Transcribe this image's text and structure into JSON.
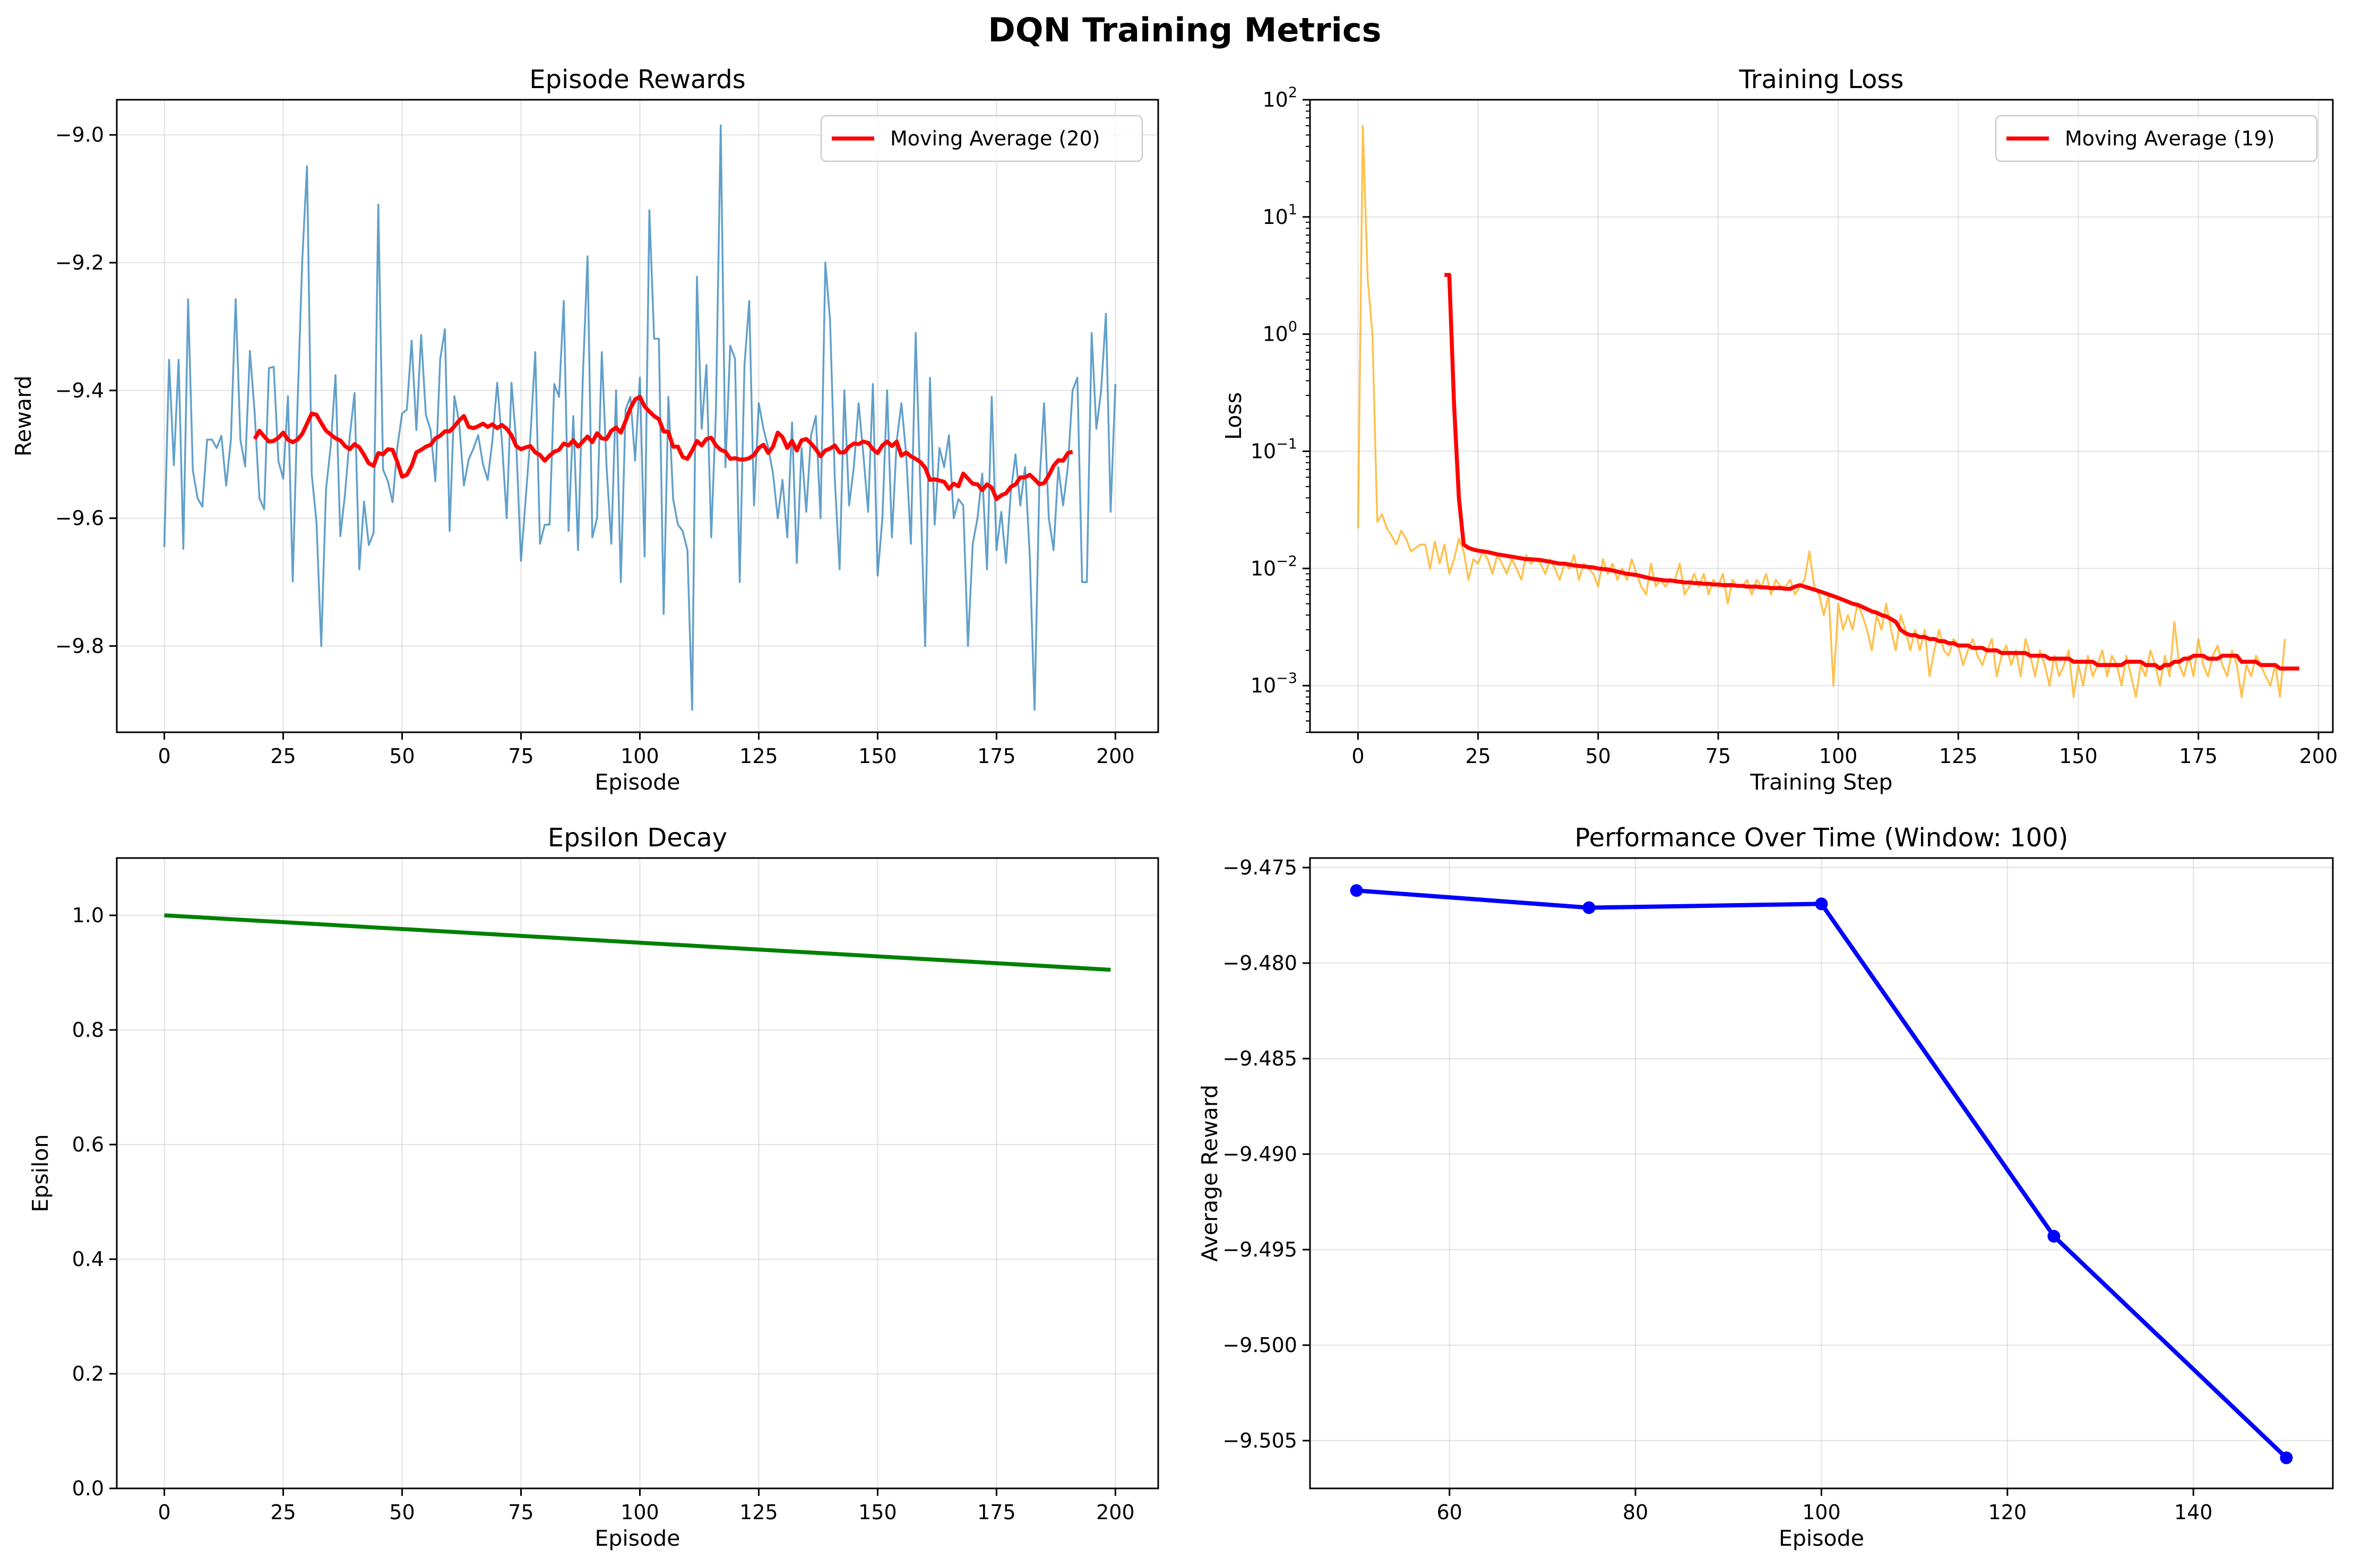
{
  "figure": {
    "title": "DQN Training Metrics"
  },
  "chart_data": [
    {
      "id": "rewards",
      "type": "line",
      "title": "Episode Rewards",
      "xlabel": "Episode",
      "ylabel": "Reward",
      "xlim": [
        -10,
        209
      ],
      "ylim": [
        -9.935,
        -8.945
      ],
      "xticks": [
        0,
        25,
        50,
        75,
        100,
        125,
        150,
        175,
        200
      ],
      "yticks": [
        -9.0,
        -9.2,
        -9.4,
        -9.6,
        -9.8
      ],
      "ytick_labels": [
        "−9.0",
        "−9.2",
        "−9.4",
        "−9.6",
        "−9.8"
      ],
      "grid": true,
      "legend": {
        "position": "top-right",
        "entries": [
          "Moving Average (20)"
        ]
      },
      "series": [
        {
          "name": "",
          "color": "#1f77b4",
          "x_start": 0,
          "y": [
            -9.645,
            -9.352,
            -9.517,
            -9.352,
            -9.648,
            -9.257,
            -9.525,
            -9.569,
            -9.582,
            -9.477,
            -9.477,
            -9.49,
            -9.471,
            -9.549,
            -9.477,
            -9.257,
            -9.477,
            -9.519,
            -9.338,
            -9.435,
            -9.569,
            -9.586,
            -9.365,
            -9.363,
            -9.511,
            -9.538,
            -9.409,
            -9.699,
            -9.427,
            -9.197,
            -9.049,
            -9.531,
            -9.607,
            -9.8,
            -9.555,
            -9.486,
            -9.376,
            -9.628,
            -9.562,
            -9.472,
            -9.404,
            -9.68,
            -9.574,
            -9.642,
            -9.623,
            -9.109,
            -9.524,
            -9.542,
            -9.575,
            -9.489,
            -9.436,
            -9.43,
            -9.322,
            -9.462,
            -9.313,
            -9.438,
            -9.462,
            -9.542,
            -9.352,
            -9.304,
            -9.62,
            -9.409,
            -9.45,
            -9.549,
            -9.508,
            -9.491,
            -9.47,
            -9.515,
            -9.54,
            -9.477,
            -9.388,
            -9.481,
            -9.6,
            -9.388,
            -9.48,
            -9.667,
            -9.568,
            -9.47,
            -9.34,
            -9.64,
            -9.61,
            -9.61,
            -9.39,
            -9.41,
            -9.26,
            -9.62,
            -9.44,
            -9.65,
            -9.38,
            -9.19,
            -9.63,
            -9.6,
            -9.34,
            -9.52,
            -9.64,
            -9.4,
            -9.7,
            -9.43,
            -9.41,
            -9.51,
            -9.38,
            -9.66,
            -9.118,
            -9.319,
            -9.319,
            -9.75,
            -9.41,
            -9.57,
            -9.61,
            -9.62,
            -9.65,
            -9.9,
            -9.222,
            -9.46,
            -9.36,
            -9.63,
            -9.43,
            -8.985,
            -9.52,
            -9.33,
            -9.35,
            -9.7,
            -9.36,
            -9.26,
            -9.58,
            -9.42,
            -9.46,
            -9.49,
            -9.53,
            -9.6,
            -9.54,
            -9.63,
            -9.45,
            -9.67,
            -9.49,
            -9.59,
            -9.47,
            -9.44,
            -9.6,
            -9.2,
            -9.29,
            -9.54,
            -9.68,
            -9.4,
            -9.58,
            -9.52,
            -9.42,
            -9.5,
            -9.59,
            -9.39,
            -9.69,
            -9.6,
            -9.4,
            -9.63,
            -9.48,
            -9.42,
            -9.5,
            -9.64,
            -9.31,
            -9.56,
            -9.8,
            -9.38,
            -9.61,
            -9.49,
            -9.52,
            -9.47,
            -9.6,
            -9.57,
            -9.58,
            -9.8,
            -9.64,
            -9.6,
            -9.53,
            -9.68,
            -9.41,
            -9.65,
            -9.59,
            -9.67,
            -9.56,
            -9.5,
            -9.58,
            -9.52,
            -9.66,
            -9.9,
            -9.55,
            -9.42,
            -9.6,
            -9.65,
            -9.52,
            -9.58,
            -9.52,
            -9.4,
            -9.38,
            -9.7,
            -9.7,
            -9.31,
            -9.46,
            -9.4,
            -9.28,
            -9.59,
            -9.39
          ]
        },
        {
          "name": "Moving Average (20)",
          "color": "#ff0000",
          "x_start": 19,
          "y": [
            -9.476,
            -9.463,
            -9.472,
            -9.48,
            -9.479,
            -9.474,
            -9.466,
            -9.477,
            -9.481,
            -9.477,
            -9.468,
            -9.452,
            -9.436,
            -9.438,
            -9.451,
            -9.463,
            -9.469,
            -9.475,
            -9.478,
            -9.487,
            -9.492,
            -9.484,
            -9.489,
            -9.501,
            -9.514,
            -9.518,
            -9.498,
            -9.5,
            -9.492,
            -9.493,
            -9.512,
            -9.535,
            -9.532,
            -9.518,
            -9.497,
            -9.493,
            -9.488,
            -9.485,
            -9.475,
            -9.471,
            -9.464,
            -9.464,
            -9.456,
            -9.447,
            -9.44,
            -9.457,
            -9.459,
            -9.456,
            -9.452,
            -9.457,
            -9.453,
            -9.459,
            -9.454,
            -9.46,
            -9.47,
            -9.487,
            -9.492,
            -9.489,
            -9.487,
            -9.497,
            -9.501,
            -9.51,
            -9.502,
            -9.496,
            -9.493,
            -9.483,
            -9.486,
            -9.478,
            -9.488,
            -9.48,
            -9.472,
            -9.481,
            -9.467,
            -9.475,
            -9.476,
            -9.463,
            -9.458,
            -9.466,
            -9.448,
            -9.428,
            -9.414,
            -9.41,
            -9.425,
            -9.433,
            -9.44,
            -9.445,
            -9.464,
            -9.465,
            -9.488,
            -9.488,
            -9.504,
            -9.507,
            -9.494,
            -9.479,
            -9.486,
            -9.476,
            -9.474,
            -9.486,
            -9.493,
            -9.496,
            -9.507,
            -9.506,
            -9.508,
            -9.508,
            -9.506,
            -9.501,
            -9.49,
            -9.485,
            -9.498,
            -9.488,
            -9.466,
            -9.473,
            -9.49,
            -9.479,
            -9.494,
            -9.478,
            -9.476,
            -9.483,
            -9.492,
            -9.503,
            -9.494,
            -9.491,
            -9.486,
            -9.497,
            -9.497,
            -9.488,
            -9.483,
            -9.484,
            -9.48,
            -9.482,
            -9.492,
            -9.498,
            -9.486,
            -9.48,
            -9.487,
            -9.48,
            -9.502,
            -9.497,
            -9.503,
            -9.507,
            -9.512,
            -9.521,
            -9.54,
            -9.539,
            -9.541,
            -9.543,
            -9.554,
            -9.546,
            -9.55,
            -9.53,
            -9.538,
            -9.546,
            -9.547,
            -9.556,
            -9.547,
            -9.552,
            -9.57,
            -9.564,
            -9.561,
            -9.551,
            -9.547,
            -9.536,
            -9.536,
            -9.532,
            -9.539,
            -9.547,
            -9.545,
            -9.533,
            -9.518,
            -9.509,
            -9.51,
            -9.498,
            -9.496
          ]
        }
      ]
    },
    {
      "id": "loss",
      "type": "line",
      "title": "Training Loss",
      "xlabel": "Training Step",
      "ylabel": "Loss",
      "yscale": "log",
      "xlim": [
        -10,
        203
      ],
      "ylim": [
        0.0004,
        100
      ],
      "xticks": [
        0,
        25,
        50,
        75,
        100,
        125,
        150,
        175,
        200
      ],
      "ytick_exponents": [
        2,
        1,
        0,
        -1,
        -2,
        -3
      ],
      "ytick_base": "10",
      "grid": true,
      "legend": {
        "position": "top-right",
        "entries": [
          "Moving Average (19)"
        ]
      },
      "series": [
        {
          "name": "",
          "color": "#ffa500",
          "x_start": 0,
          "y": [
            0.022,
            60,
            3.0,
            1.0,
            0.025,
            0.029,
            0.022,
            0.019,
            0.016,
            0.021,
            0.018,
            0.014,
            0.015,
            0.016,
            0.016,
            0.01,
            0.017,
            0.011,
            0.016,
            0.009,
            0.012,
            0.018,
            0.014,
            0.008,
            0.012,
            0.011,
            0.014,
            0.012,
            0.009,
            0.013,
            0.011,
            0.009,
            0.012,
            0.01,
            0.008,
            0.013,
            0.011,
            0.012,
            0.011,
            0.009,
            0.012,
            0.01,
            0.008,
            0.011,
            0.01,
            0.013,
            0.008,
            0.011,
            0.01,
            0.009,
            0.007,
            0.012,
            0.009,
            0.011,
            0.008,
            0.01,
            0.008,
            0.012,
            0.009,
            0.007,
            0.006,
            0.011,
            0.007,
            0.008,
            0.007,
            0.008,
            0.008,
            0.011,
            0.006,
            0.007,
            0.009,
            0.007,
            0.009,
            0.006,
            0.008,
            0.007,
            0.009,
            0.005,
            0.008,
            0.007,
            0.007,
            0.008,
            0.006,
            0.008,
            0.007,
            0.009,
            0.006,
            0.008,
            0.007,
            0.007,
            0.008,
            0.006,
            0.007,
            0.008,
            0.014,
            0.007,
            0.006,
            0.004,
            0.006,
            0.001,
            0.005,
            0.003,
            0.004,
            0.003,
            0.005,
            0.004,
            0.003,
            0.002,
            0.004,
            0.003,
            0.005,
            0.003,
            0.002,
            0.004,
            0.003,
            0.002,
            0.003,
            0.002,
            0.003,
            0.0012,
            0.002,
            0.003,
            0.002,
            0.0018,
            0.0025,
            0.0022,
            0.0015,
            0.002,
            0.0025,
            0.0018,
            0.0015,
            0.002,
            0.0025,
            0.0012,
            0.0018,
            0.0022,
            0.0015,
            0.002,
            0.0012,
            0.0025,
            0.0018,
            0.0012,
            0.002,
            0.0015,
            0.001,
            0.0018,
            0.0012,
            0.0015,
            0.002,
            0.0008,
            0.0015,
            0.001,
            0.0018,
            0.0012,
            0.0015,
            0.002,
            0.0012,
            0.0018,
            0.0015,
            0.001,
            0.0018,
            0.0012,
            0.0008,
            0.0015,
            0.0012,
            0.002,
            0.0015,
            0.001,
            0.0018,
            0.0012,
            0.0035,
            0.0015,
            0.0012,
            0.0018,
            0.0012,
            0.0025,
            0.0015,
            0.0012,
            0.0018,
            0.0022,
            0.0015,
            0.0012,
            0.002,
            0.0015,
            0.0008,
            0.0015,
            0.0012,
            0.0018,
            0.0015,
            0.0012,
            0.001,
            0.0015,
            0.0008,
            0.0025
          ]
        },
        {
          "name": "Moving Average (19)",
          "color": "#ff0000",
          "x_start": 18,
          "y": [
            3.2,
            3.2,
            0.25,
            0.04,
            0.016,
            0.015,
            0.0145,
            0.0142,
            0.014,
            0.0138,
            0.0135,
            0.0132,
            0.013,
            0.0128,
            0.0126,
            0.0124,
            0.0122,
            0.012,
            0.012,
            0.0119,
            0.0118,
            0.0116,
            0.0114,
            0.0112,
            0.011,
            0.011,
            0.0108,
            0.0106,
            0.0105,
            0.0104,
            0.0103,
            0.0102,
            0.01,
            0.0099,
            0.0098,
            0.0096,
            0.0094,
            0.0092,
            0.009,
            0.0089,
            0.0088,
            0.0086,
            0.0084,
            0.0082,
            0.0081,
            0.008,
            0.0079,
            0.0079,
            0.0078,
            0.0077,
            0.0076,
            0.0076,
            0.0075,
            0.0075,
            0.0074,
            0.0074,
            0.0073,
            0.0073,
            0.0072,
            0.0072,
            0.0072,
            0.0071,
            0.0071,
            0.007,
            0.007,
            0.007,
            0.0069,
            0.0069,
            0.0068,
            0.0068,
            0.0068,
            0.0067,
            0.0067,
            0.007,
            0.0072,
            0.007,
            0.0068,
            0.0066,
            0.0064,
            0.0062,
            0.006,
            0.0058,
            0.0056,
            0.0054,
            0.0052,
            0.005,
            0.0049,
            0.0047,
            0.0045,
            0.0043,
            0.0042,
            0.004,
            0.0039,
            0.0037,
            0.0035,
            0.003,
            0.0028,
            0.0027,
            0.0027,
            0.0026,
            0.0026,
            0.0025,
            0.0025,
            0.0024,
            0.0024,
            0.0023,
            0.0023,
            0.0022,
            0.0022,
            0.0022,
            0.0021,
            0.0021,
            0.0021,
            0.002,
            0.002,
            0.002,
            0.0019,
            0.0019,
            0.0019,
            0.0019,
            0.0019,
            0.0019,
            0.0018,
            0.0018,
            0.0018,
            0.0018,
            0.0017,
            0.0017,
            0.0017,
            0.0017,
            0.0017,
            0.0016,
            0.0016,
            0.0016,
            0.0016,
            0.0016,
            0.0015,
            0.0015,
            0.0015,
            0.0015,
            0.0015,
            0.0015,
            0.0016,
            0.0016,
            0.0016,
            0.0016,
            0.0015,
            0.0015,
            0.0015,
            0.0014,
            0.0015,
            0.0015,
            0.0016,
            0.0016,
            0.0017,
            0.0017,
            0.0018,
            0.0018,
            0.0018,
            0.0017,
            0.0017,
            0.0017,
            0.0018,
            0.0018,
            0.0018,
            0.0018,
            0.0016,
            0.0016,
            0.0016,
            0.0016,
            0.0015,
            0.0015,
            0.0015,
            0.0015,
            0.0014,
            0.0014,
            0.0014,
            0.0014,
            0.0014
          ]
        }
      ]
    },
    {
      "id": "epsilon",
      "type": "line",
      "title": "Epsilon Decay",
      "xlabel": "Episode",
      "ylabel": "Epsilon",
      "xlim": [
        -10,
        209
      ],
      "ylim": [
        0,
        1.1
      ],
      "xticks": [
        0,
        25,
        50,
        75,
        100,
        125,
        150,
        175,
        200
      ],
      "yticks": [
        0.0,
        0.2,
        0.4,
        0.6,
        0.8,
        1.0
      ],
      "ytick_labels": [
        "0.0",
        "0.2",
        "0.4",
        "0.6",
        "0.8",
        "1.0"
      ],
      "grid": true,
      "series": [
        {
          "name": "",
          "color": "#008000",
          "x": [
            0,
            199
          ],
          "y": [
            1.0,
            0.905
          ]
        }
      ]
    },
    {
      "id": "performance",
      "type": "line",
      "title": "Performance Over Time (Window: 100)",
      "xlabel": "Episode",
      "ylabel": "Average Reward",
      "xlim": [
        45,
        155
      ],
      "ylim": [
        -9.5075,
        -9.4745
      ],
      "xticks": [
        60,
        80,
        100,
        120,
        140
      ],
      "yticks": [
        -9.475,
        -9.48,
        -9.485,
        -9.49,
        -9.495,
        -9.5,
        -9.505
      ],
      "ytick_labels": [
        "−9.475",
        "−9.480",
        "−9.485",
        "−9.490",
        "−9.495",
        "−9.500",
        "−9.505"
      ],
      "grid": true,
      "markers": true,
      "series": [
        {
          "name": "",
          "color": "#0000ff",
          "x": [
            50,
            75,
            100,
            125,
            150
          ],
          "y": [
            -9.4762,
            -9.4771,
            -9.4769,
            -9.4943,
            -9.5059
          ]
        }
      ]
    }
  ]
}
